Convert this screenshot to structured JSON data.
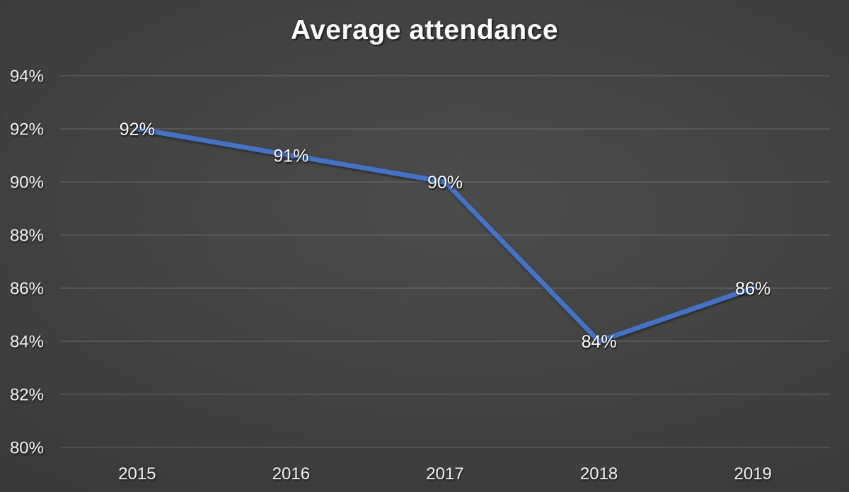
{
  "chart_data": {
    "type": "line",
    "title": "Average attendance",
    "categories": [
      "2015",
      "2016",
      "2017",
      "2018",
      "2019"
    ],
    "series": [
      {
        "name": "Average attendance",
        "values": [
          92,
          91,
          90,
          84,
          86
        ]
      }
    ],
    "data_labels": [
      "92%",
      "91%",
      "90%",
      "84%",
      "86%"
    ],
    "y_ticks": [
      {
        "value": 94,
        "label": "94%"
      },
      {
        "value": 92,
        "label": "92%"
      },
      {
        "value": 90,
        "label": "90%"
      },
      {
        "value": 88,
        "label": "88%"
      },
      {
        "value": 86,
        "label": "86%"
      },
      {
        "value": 84,
        "label": "84%"
      },
      {
        "value": 82,
        "label": "82%"
      },
      {
        "value": 80,
        "label": "80%"
      }
    ],
    "ylim": [
      80,
      94
    ],
    "grid": true,
    "legend_position": "none",
    "colors": {
      "line": "#4472c4",
      "data_label": "#ffffff",
      "axis_text": "#f1f1f1",
      "gridline": "rgba(255,255,255,0.17)"
    }
  }
}
